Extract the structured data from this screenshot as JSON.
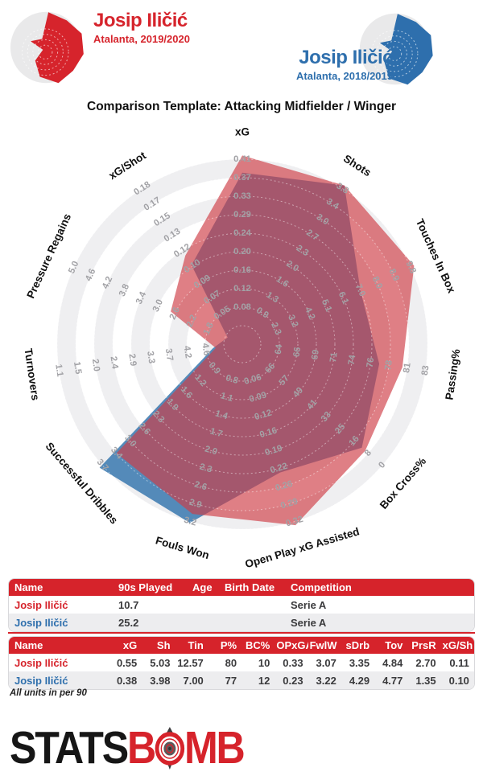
{
  "header": {
    "player1": {
      "name": "Josip Iličić",
      "subtitle": "Atalanta, 2019/2020"
    },
    "player2": {
      "name": "Josip Iličić",
      "subtitle": "Atalanta, 2018/2019"
    }
  },
  "title": "Comparison Template: Attacking Midfielder / Winger",
  "chart_data": {
    "type": "radar",
    "title": "Comparison Template: Attacking Midfielder / Winger",
    "ring_count": 10,
    "tick_placement": "nine tick labels per axis placed on rings 2 through 10; outermost tick sits on the outer edge",
    "grid": "alternating white and light-gray annular bands",
    "axes": [
      {
        "label": "xG",
        "ticks": [
          "0.08",
          "0.12",
          "0.16",
          "0.20",
          "0.24",
          "0.29",
          "0.33",
          "0.37",
          "0.41"
        ]
      },
      {
        "label": "Shots",
        "ticks": [
          "0.9",
          "1.3",
          "1.6",
          "2.0",
          "2.3",
          "2.7",
          "3.0",
          "3.4",
          "3.8"
        ]
      },
      {
        "label": "Touches In Box",
        "ticks": [
          "2.3",
          "3.2",
          "4.2",
          "5.1",
          "6.1",
          "7.0",
          "8.0",
          "8.9",
          "9.8"
        ]
      },
      {
        "label": "Passing%",
        "ticks": [
          "64",
          "66",
          "69",
          "71",
          "74",
          "76",
          "78",
          "81",
          "83"
        ]
      },
      {
        "label": "Box Cross%",
        "ticks": [
          "66",
          "57",
          "49",
          "41",
          "33",
          "25",
          "16",
          "8",
          "0"
        ]
      },
      {
        "label": "Open Play xG Assisted",
        "ticks": [
          "0.06",
          "0.09",
          "0.12",
          "0.16",
          "0.19",
          "0.22",
          "0.26",
          "0.29",
          "0.32"
        ]
      },
      {
        "label": "Fouls Won",
        "ticks": [
          "0.8",
          "1.1",
          "1.4",
          "1.7",
          "2.0",
          "2.3",
          "2.6",
          "2.9",
          "3.2"
        ]
      },
      {
        "label": "Successful Dribbles",
        "ticks": [
          "0.9",
          "1.2",
          "1.6",
          "1.9",
          "2.3",
          "2.6",
          "3.0",
          "3.4",
          "3.7"
        ]
      },
      {
        "label": "Turnovers",
        "ticks": [
          "4.6",
          "4.2",
          "3.7",
          "3.3",
          "2.9",
          "2.4",
          "2.0",
          "1.5",
          "1.1"
        ]
      },
      {
        "label": "Pressure Regains",
        "ticks": [
          "1.8",
          "2.2",
          "2.6",
          "3.0",
          "3.4",
          "3.8",
          "4.2",
          "4.6",
          "5.0"
        ]
      },
      {
        "label": "xG/Shot",
        "ticks": [
          "0.05",
          "0.07",
          "0.09",
          "0.10",
          "0.12",
          "0.13",
          "0.15",
          "0.17",
          "0.18"
        ]
      }
    ],
    "series": [
      {
        "name": "Josip Iličić (Atalanta, 2019/2020)",
        "color": "#cf3c46",
        "values": [
          0.55,
          5.03,
          12.57,
          80,
          10,
          0.33,
          3.07,
          3.35,
          4.84,
          2.7,
          0.11
        ]
      },
      {
        "name": "Josip Iličić (Atalanta, 2018/2019)",
        "color": "#4781b4",
        "values": [
          0.38,
          3.98,
          7.0,
          77,
          12,
          0.23,
          3.22,
          4.29,
          4.77,
          1.35,
          0.1
        ]
      }
    ]
  },
  "tables": {
    "info": {
      "headers": [
        "Name",
        "90s Played",
        "Age",
        "Birth Date",
        "Competition"
      ],
      "rows": [
        [
          "Josip Iličić",
          "10.7",
          "",
          "",
          "Serie A"
        ],
        [
          "Josip Iličić",
          "25.2",
          "",
          "",
          "Serie A"
        ]
      ]
    },
    "stats": {
      "headers": [
        "Name",
        "xG",
        "Sh",
        "Tin",
        "P%",
        "BC%",
        "OPxGAs",
        "FwlW",
        "sDrb",
        "Tov",
        "PrsR",
        "xG/Sh"
      ],
      "rows": [
        [
          "Josip Iličić",
          "0.55",
          "5.03",
          "12.57",
          "80",
          "10",
          "0.33",
          "3.07",
          "3.35",
          "4.84",
          "2.70",
          "0.11"
        ],
        [
          "Josip Iličić",
          "0.38",
          "3.98",
          "7.00",
          "77",
          "12",
          "0.23",
          "3.22",
          "4.29",
          "4.77",
          "1.35",
          "0.10"
        ]
      ]
    },
    "footnote": "All units in per 90"
  },
  "footer": {
    "brand_black": "STATS",
    "brand_red_b": "B",
    "brand_red_mb": "MB"
  },
  "colors": {
    "accent_red": "#d6242c",
    "accent_blue": "#2e6fad",
    "radar_red": "#cf3c46",
    "radar_blue": "#4781b4",
    "band_gray": "#efeff1",
    "tick_gray": "#a2a2a6",
    "axis_title": "#101010",
    "table_header_bg": "#d6232b",
    "row_alt": "#ededef",
    "logo_gray": "#e9e9ea"
  }
}
